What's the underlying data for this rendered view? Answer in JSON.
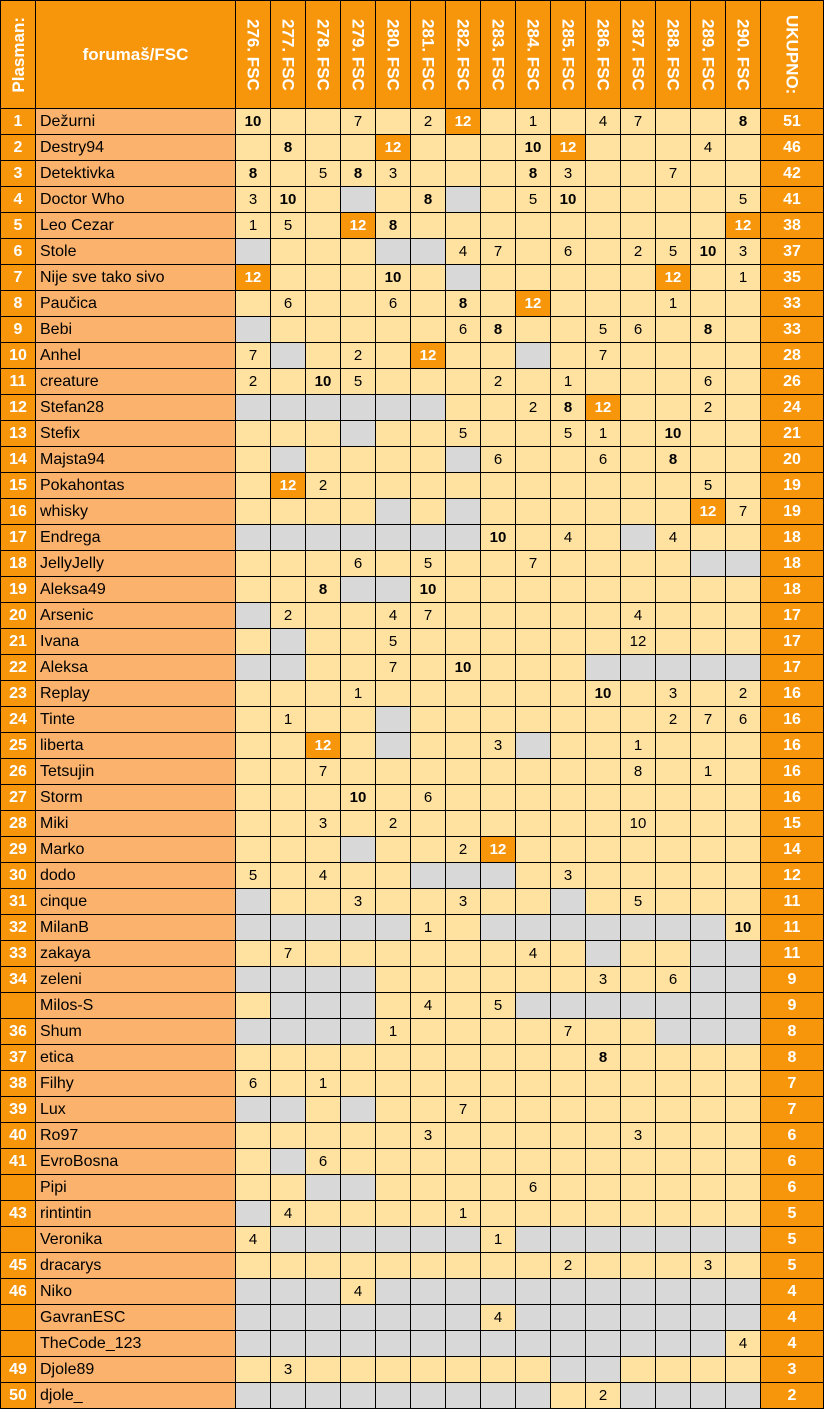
{
  "header": {
    "place": "Plasman:",
    "name": "forumaš/FSC",
    "columns": [
      "276. FSC",
      "277. FSC",
      "278. FSC",
      "279. FSC",
      "280. FSC",
      "281. FSC",
      "282. FSC",
      "283. FSC",
      "284. FSC",
      "285. FSC",
      "286. FSC",
      "287. FSC",
      "288. FSC",
      "289. FSC",
      "290. FSC"
    ],
    "total": "UKUPNO:"
  },
  "colors": {
    "orange": "#f7960b",
    "light_orange": "#fab26c",
    "cell": "#ffe1a0",
    "gray": "#d8d8d8"
  },
  "rows": [
    {
      "rank": "1",
      "name": "Dežurni",
      "total": "51",
      "cells": [
        "10b",
        "",
        "",
        "7",
        "",
        "2",
        "12o",
        "",
        "1",
        "",
        "4",
        "7",
        "",
        "",
        "8b"
      ]
    },
    {
      "rank": "2",
      "name": "Destry94",
      "total": "46",
      "cells": [
        "",
        "8b",
        "",
        "",
        "12o",
        "",
        "",
        "",
        "10b",
        "12o",
        "",
        "",
        "",
        "4",
        ""
      ]
    },
    {
      "rank": "3",
      "name": "Detektivka",
      "total": "42",
      "cells": [
        "8b",
        "",
        "5",
        "8b",
        "3",
        "",
        "",
        "",
        "8b",
        "3",
        "",
        "",
        "7",
        "",
        ""
      ]
    },
    {
      "rank": "4",
      "name": "Doctor Who",
      "total": "41",
      "cells": [
        "3",
        "10b",
        "",
        "g",
        "",
        "8b",
        "g",
        "",
        "5",
        "10b",
        "",
        "",
        "",
        "",
        "5"
      ]
    },
    {
      "rank": "5",
      "name": "Leo Cezar",
      "total": "38",
      "cells": [
        "1",
        "5",
        "",
        "12o",
        "8b",
        "",
        "",
        "",
        "",
        "",
        "",
        "",
        "",
        "",
        "12o"
      ]
    },
    {
      "rank": "6",
      "name": "Stole",
      "total": "37",
      "cells": [
        "g",
        "",
        "",
        "",
        "g",
        "g",
        "4",
        "7",
        "",
        "6",
        "",
        "2",
        "5",
        "10b",
        "3"
      ]
    },
    {
      "rank": "7",
      "name": "Nije sve tako sivo",
      "total": "35",
      "cells": [
        "12o",
        "",
        "",
        "",
        "10b",
        "",
        "g",
        "",
        "",
        "",
        "",
        "",
        "12o",
        "",
        "1"
      ]
    },
    {
      "rank": "8",
      "name": "Paučica",
      "total": "33",
      "cells": [
        "",
        "6",
        "",
        "",
        "6",
        "",
        "8b",
        "",
        "12o",
        "",
        "",
        "",
        "1",
        "",
        ""
      ]
    },
    {
      "rank": "9",
      "name": "Bebi",
      "total": "33",
      "cells": [
        "g",
        "",
        "",
        "",
        "",
        "",
        "6",
        "8b",
        "",
        "",
        "5",
        "6",
        "",
        "8b",
        ""
      ]
    },
    {
      "rank": "10",
      "name": "Anhel",
      "total": "28",
      "cells": [
        "7",
        "g",
        "",
        "2",
        "",
        "12o",
        "",
        "",
        "g",
        "",
        "7",
        "",
        "",
        "",
        ""
      ]
    },
    {
      "rank": "11",
      "name": "creature",
      "total": "26",
      "cells": [
        "2",
        "",
        "10b",
        "5",
        "",
        "",
        "",
        "2",
        "",
        "1",
        "",
        "",
        "",
        "6",
        ""
      ]
    },
    {
      "rank": "12",
      "name": "Stefan28",
      "total": "24",
      "cells": [
        "g",
        "g",
        "g",
        "g",
        "g",
        "g",
        "",
        "",
        "2",
        "8b",
        "12o",
        "",
        "",
        "2",
        ""
      ]
    },
    {
      "rank": "13",
      "name": "Stefix",
      "total": "21",
      "cells": [
        "",
        "",
        "",
        "g",
        "",
        "",
        "5",
        "",
        "",
        "5",
        "1",
        "",
        "10b",
        "",
        ""
      ]
    },
    {
      "rank": "14",
      "name": "Majsta94",
      "total": "20",
      "cells": [
        "",
        "g",
        "",
        "",
        "",
        "",
        "g",
        "6",
        "",
        "",
        "6",
        "",
        "8b",
        "",
        ""
      ]
    },
    {
      "rank": "15",
      "name": "Pokahontas",
      "total": "19",
      "cells": [
        "",
        "12o",
        "2",
        "",
        "",
        "",
        "",
        "",
        "",
        "",
        "",
        "",
        "",
        "5",
        ""
      ]
    },
    {
      "rank": "16",
      "name": "whisky",
      "total": "19",
      "cells": [
        "",
        "",
        "",
        "",
        "g",
        "",
        "g",
        "",
        "",
        "",
        "",
        "",
        "",
        "12o",
        "7"
      ]
    },
    {
      "rank": "17",
      "name": "Endrega",
      "total": "18",
      "cells": [
        "g",
        "g",
        "g",
        "g",
        "g",
        "g",
        "g",
        "10b",
        "",
        "4",
        "",
        "g",
        "4",
        "",
        ""
      ]
    },
    {
      "rank": "18",
      "name": "JellyJelly",
      "total": "18",
      "cells": [
        "",
        "",
        "",
        "6",
        "",
        "5",
        "",
        "",
        "7",
        "",
        "",
        "",
        "",
        "g",
        "g"
      ]
    },
    {
      "rank": "19",
      "name": "Aleksa49",
      "total": "18",
      "cells": [
        "",
        "",
        "8b",
        "g",
        "g",
        "10b",
        "",
        "",
        "",
        "",
        "",
        "",
        "",
        "",
        ""
      ]
    },
    {
      "rank": "20",
      "name": "Arsenic",
      "total": "17",
      "cells": [
        "g",
        "2",
        "",
        "",
        "4",
        "7",
        "",
        "",
        "",
        "",
        "",
        "4",
        "",
        "",
        ""
      ]
    },
    {
      "rank": "21",
      "name": "Ivana",
      "total": "17",
      "cells": [
        "",
        "g",
        "",
        "",
        "5",
        "",
        "",
        "",
        "",
        "",
        "",
        "12",
        "",
        "",
        ""
      ]
    },
    {
      "rank": "22",
      "name": "Aleksa",
      "total": "17",
      "cells": [
        "g",
        "g",
        "",
        "",
        "7",
        "",
        "10b",
        "",
        "",
        "",
        "g",
        "g",
        "g",
        "g",
        "g"
      ]
    },
    {
      "rank": "23",
      "name": "Replay",
      "total": "16",
      "cells": [
        "",
        "",
        "",
        "1",
        "",
        "",
        "",
        "",
        "",
        "",
        "10b",
        "",
        "3",
        "",
        "2"
      ]
    },
    {
      "rank": "24",
      "name": "Tinte",
      "total": "16",
      "cells": [
        "",
        "1",
        "",
        "",
        "g",
        "",
        "",
        "",
        "",
        "",
        "",
        "",
        "2",
        "7",
        "6"
      ]
    },
    {
      "rank": "25",
      "name": "liberta",
      "total": "16",
      "cells": [
        "",
        "",
        "12o",
        "",
        "g",
        "",
        "",
        "3",
        "g",
        "",
        "",
        "1",
        "",
        "",
        ""
      ]
    },
    {
      "rank": "26",
      "name": "Tetsujin",
      "total": "16",
      "cells": [
        "",
        "",
        "7",
        "",
        "",
        "",
        "",
        "",
        "",
        "",
        "",
        "8",
        "",
        "1",
        ""
      ]
    },
    {
      "rank": "27",
      "name": "Storm",
      "total": "16",
      "cells": [
        "",
        "",
        "",
        "10b",
        "",
        "6",
        "",
        "",
        "",
        "",
        "",
        "",
        "",
        "",
        ""
      ]
    },
    {
      "rank": "28",
      "name": "Miki",
      "total": "15",
      "cells": [
        "",
        "",
        "3",
        "",
        "2",
        "",
        "",
        "",
        "",
        "",
        "",
        "10",
        "",
        "",
        ""
      ]
    },
    {
      "rank": "29",
      "name": "Marko",
      "total": "14",
      "cells": [
        "",
        "",
        "",
        "g",
        "",
        "",
        "2",
        "12o",
        "",
        "",
        "",
        "",
        "",
        "",
        ""
      ]
    },
    {
      "rank": "30",
      "name": "dodo",
      "total": "12",
      "cells": [
        "5",
        "",
        "4",
        "",
        "",
        "g",
        "g",
        "g",
        "",
        "3",
        "",
        "",
        "",
        "",
        ""
      ]
    },
    {
      "rank": "31",
      "name": "cinque",
      "total": "11",
      "cells": [
        "g",
        "",
        "",
        "3",
        "",
        "",
        "3",
        "",
        "",
        "g",
        "",
        "5",
        "",
        "",
        ""
      ]
    },
    {
      "rank": "32",
      "name": "MilanB",
      "total": "11",
      "cells": [
        "g",
        "g",
        "g",
        "g",
        "g",
        "1",
        "",
        "g",
        "g",
        "g",
        "g",
        "g",
        "g",
        "g",
        "10b"
      ]
    },
    {
      "rank": "33",
      "name": "zakaya",
      "total": "11",
      "cells": [
        "",
        "7",
        "",
        "",
        "",
        "",
        "",
        "",
        "4",
        "",
        "g",
        "",
        "",
        "g",
        "g"
      ]
    },
    {
      "rank": "34",
      "name": "zeleni",
      "total": "9",
      "cells": [
        "g",
        "g",
        "g",
        "g",
        "",
        "",
        "",
        "",
        "",
        "",
        "3",
        "",
        "6",
        "g",
        "g"
      ]
    },
    {
      "rank": "",
      "name": "Milos-S",
      "total": "9",
      "cells": [
        "",
        "g",
        "g",
        "g",
        "",
        "4",
        "",
        "5",
        "g",
        "g",
        "g",
        "g",
        "g",
        "g",
        "g"
      ]
    },
    {
      "rank": "36",
      "name": "Shum",
      "total": "8",
      "cells": [
        "g",
        "g",
        "g",
        "g",
        "1",
        "",
        "",
        "",
        "",
        "7",
        "",
        "",
        "g",
        "g",
        "g"
      ]
    },
    {
      "rank": "37",
      "name": "etica",
      "total": "8",
      "cells": [
        "",
        "",
        "",
        "",
        "",
        "",
        "",
        "",
        "",
        "",
        "8b",
        "",
        "",
        "",
        ""
      ]
    },
    {
      "rank": "38",
      "name": "Filhy",
      "total": "7",
      "cells": [
        "6",
        "",
        "1",
        "",
        "",
        "",
        "",
        "",
        "",
        "",
        "",
        "",
        "",
        "",
        ""
      ]
    },
    {
      "rank": "39",
      "name": "Lux",
      "total": "7",
      "cells": [
        "g",
        "g",
        "",
        "g",
        "",
        "",
        "7",
        "",
        "",
        "",
        "",
        "",
        "",
        "",
        ""
      ]
    },
    {
      "rank": "40",
      "name": "Ro97",
      "total": "6",
      "cells": [
        "",
        "",
        "",
        "",
        "",
        "3",
        "",
        "",
        "",
        "",
        "",
        "3",
        "",
        "",
        ""
      ]
    },
    {
      "rank": "41",
      "name": "EvroBosna",
      "total": "6",
      "cells": [
        "",
        "g",
        "6",
        "",
        "",
        "",
        "",
        "",
        "",
        "",
        "",
        "",
        "",
        "",
        ""
      ]
    },
    {
      "rank": "",
      "name": "Pipi",
      "total": "6",
      "cells": [
        "",
        "",
        "g",
        "g",
        "",
        "",
        "",
        "",
        "6",
        "",
        "",
        "",
        "",
        "",
        ""
      ]
    },
    {
      "rank": "43",
      "name": "rintintin",
      "total": "5",
      "cells": [
        "g",
        "4",
        "",
        "",
        "",
        "",
        "1",
        "",
        "",
        "",
        "",
        "",
        "",
        "",
        ""
      ]
    },
    {
      "rank": "",
      "name": "Veronika",
      "total": "5",
      "cells": [
        "4",
        "g",
        "g",
        "g",
        "g",
        "g",
        "g",
        "1",
        "g",
        "g",
        "g",
        "g",
        "g",
        "g",
        "g"
      ]
    },
    {
      "rank": "45",
      "name": "dracarys",
      "total": "5",
      "cells": [
        "",
        "",
        "",
        "",
        "",
        "",
        "",
        "",
        "",
        "2",
        "",
        "",
        "",
        "3",
        ""
      ]
    },
    {
      "rank": "46",
      "name": "Niko",
      "total": "4",
      "cells": [
        "g",
        "g",
        "g",
        "4",
        "g",
        "g",
        "g",
        "g",
        "g",
        "g",
        "g",
        "g",
        "g",
        "g",
        "g"
      ]
    },
    {
      "rank": "",
      "name": "GavranESC",
      "total": "4",
      "cells": [
        "g",
        "g",
        "g",
        "g",
        "g",
        "g",
        "g",
        "4",
        "g",
        "g",
        "g",
        "g",
        "g",
        "g",
        "g"
      ]
    },
    {
      "rank": "",
      "name": "TheCode_123",
      "total": "4",
      "cells": [
        "g",
        "g",
        "g",
        "g",
        "g",
        "g",
        "g",
        "g",
        "g",
        "g",
        "g",
        "g",
        "g",
        "g",
        "4"
      ]
    },
    {
      "rank": "49",
      "name": "Djole89",
      "total": "3",
      "cells": [
        "",
        "3",
        "",
        "",
        "",
        "",
        "",
        "",
        "",
        "g",
        "g",
        "",
        "",
        "",
        ""
      ]
    },
    {
      "rank": "50",
      "name": "djole_",
      "total": "2",
      "cells": [
        "g",
        "g",
        "g",
        "g",
        "g",
        "g",
        "g",
        "g",
        "g",
        "",
        "2",
        "g",
        "g",
        "g",
        "g"
      ]
    }
  ]
}
